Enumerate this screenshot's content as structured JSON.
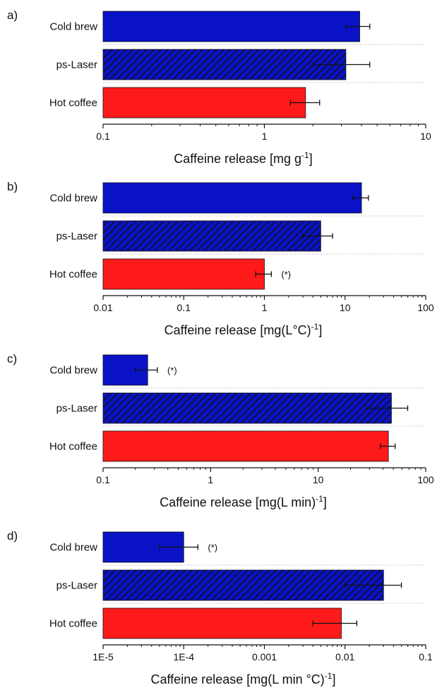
{
  "chart_data": [
    {
      "type": "bar",
      "orientation": "horizontal",
      "panel_label": "a)",
      "categories": [
        "Cold brew",
        "ps-Laser",
        "Hot coffee"
      ],
      "values": [
        3.9,
        3.2,
        1.8
      ],
      "error_low": [
        3.2,
        2.0,
        1.45
      ],
      "error_high": [
        4.5,
        4.5,
        2.2
      ],
      "bar_styles": [
        "solid-blue",
        "hatched-blue",
        "solid-red"
      ],
      "annotations": [
        "",
        "",
        ""
      ],
      "xscale": "log",
      "xlim": [
        0.1,
        10
      ],
      "xticks": [
        "0.1",
        "1",
        "10"
      ],
      "xlabel": "Caffeine release [mg g",
      "xlabel_sup": "-1",
      "xlabel_tail": "]",
      "grid": "dashed category separators"
    },
    {
      "type": "bar",
      "orientation": "horizontal",
      "panel_label": "b)",
      "categories": [
        "Cold brew",
        "ps-Laser",
        "Hot coffee"
      ],
      "values": [
        16,
        5,
        1.0
      ],
      "error_low": [
        12.5,
        3.0,
        0.78
      ],
      "error_high": [
        19.5,
        7.0,
        1.22
      ],
      "bar_styles": [
        "solid-blue",
        "hatched-blue",
        "solid-red"
      ],
      "annotations": [
        "",
        "",
        "(*)"
      ],
      "xscale": "log",
      "xlim": [
        0.01,
        100
      ],
      "xticks": [
        "0.01",
        "0.1",
        "1",
        "10",
        "100"
      ],
      "xlabel": "Caffeine release [mg(L°C)",
      "xlabel_sup": "-1",
      "xlabel_tail": "]",
      "grid": "dashed category separators"
    },
    {
      "type": "bar",
      "orientation": "horizontal",
      "panel_label": "c)",
      "categories": [
        "Cold brew",
        "ps-Laser",
        "Hot coffee"
      ],
      "values": [
        0.26,
        48,
        45
      ],
      "error_low": [
        0.2,
        28,
        38
      ],
      "error_high": [
        0.32,
        68,
        52
      ],
      "bar_styles": [
        "solid-blue",
        "hatched-blue",
        "solid-red"
      ],
      "annotations": [
        "(*)",
        "",
        ""
      ],
      "xscale": "log",
      "xlim": [
        0.1,
        100
      ],
      "xticks": [
        "0.1",
        "1",
        "10",
        "100"
      ],
      "xlabel": "Caffeine release [mg(L min)",
      "xlabel_sup": "-1",
      "xlabel_tail": "]",
      "grid": "dashed category separators"
    },
    {
      "type": "bar",
      "orientation": "horizontal",
      "panel_label": "d)",
      "categories": [
        "Cold brew",
        "ps-Laser",
        "Hot coffee"
      ],
      "values": [
        0.0001,
        0.03,
        0.009
      ],
      "error_low": [
        5e-05,
        0.01,
        0.004
      ],
      "error_high": [
        0.00015,
        0.05,
        0.014
      ],
      "bar_styles": [
        "solid-blue",
        "hatched-blue",
        "solid-red"
      ],
      "annotations": [
        "(*)",
        "",
        ""
      ],
      "xscale": "log",
      "xlim": [
        1e-05,
        0.1
      ],
      "xticks": [
        "1E-5",
        "1E-4",
        "0.001",
        "0.01",
        "0.1"
      ],
      "xlabel": "Caffeine release [mg(L min °C)",
      "xlabel_sup": "-1",
      "xlabel_tail": "]",
      "grid": "dashed category separators"
    }
  ],
  "colors": {
    "blue": "#0a12c8",
    "red": "#ff1a1a",
    "hatch_line": "#111111",
    "axis": "#111111",
    "separator": "#c8c8c8"
  }
}
